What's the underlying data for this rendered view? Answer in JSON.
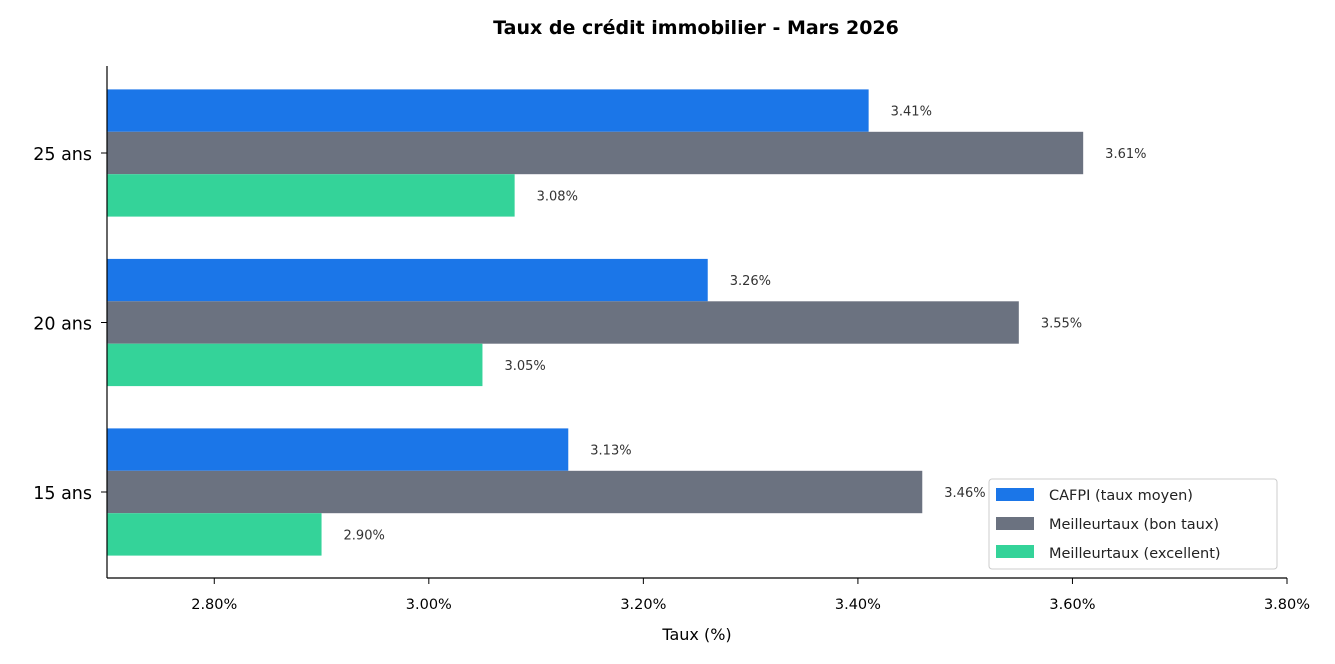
{
  "chart_data": {
    "type": "bar",
    "orientation": "horizontal",
    "title": "Taux de crédit immobilier - Mars 2026",
    "xlabel": "Taux (%)",
    "ylabel": "",
    "xlim": [
      2.7,
      3.8
    ],
    "xticks": [
      2.8,
      3.0,
      3.2,
      3.4,
      3.6,
      3.8
    ],
    "xtick_labels": [
      "2.80%",
      "3.00%",
      "3.20%",
      "3.40%",
      "3.60%",
      "3.80%"
    ],
    "categories": [
      "15 ans",
      "20 ans",
      "25 ans"
    ],
    "series": [
      {
        "name": "CAFPI (taux moyen)",
        "color": "#1b76e8",
        "values": [
          3.13,
          3.26,
          3.41
        ],
        "labels": [
          "3.13%",
          "3.26%",
          "3.41%"
        ]
      },
      {
        "name": "Meilleurtaux (bon taux)",
        "color": "#6b7280",
        "values": [
          3.46,
          3.55,
          3.61
        ],
        "labels": [
          "3.46%",
          "3.55%",
          "3.61%"
        ]
      },
      {
        "name": "Meilleurtaux (excellent)",
        "color": "#34d399",
        "values": [
          2.9,
          3.05,
          3.08
        ],
        "labels": [
          "2.90%",
          "3.05%",
          "3.08%"
        ]
      }
    ],
    "grid": false,
    "legend_position": "lower-right"
  }
}
